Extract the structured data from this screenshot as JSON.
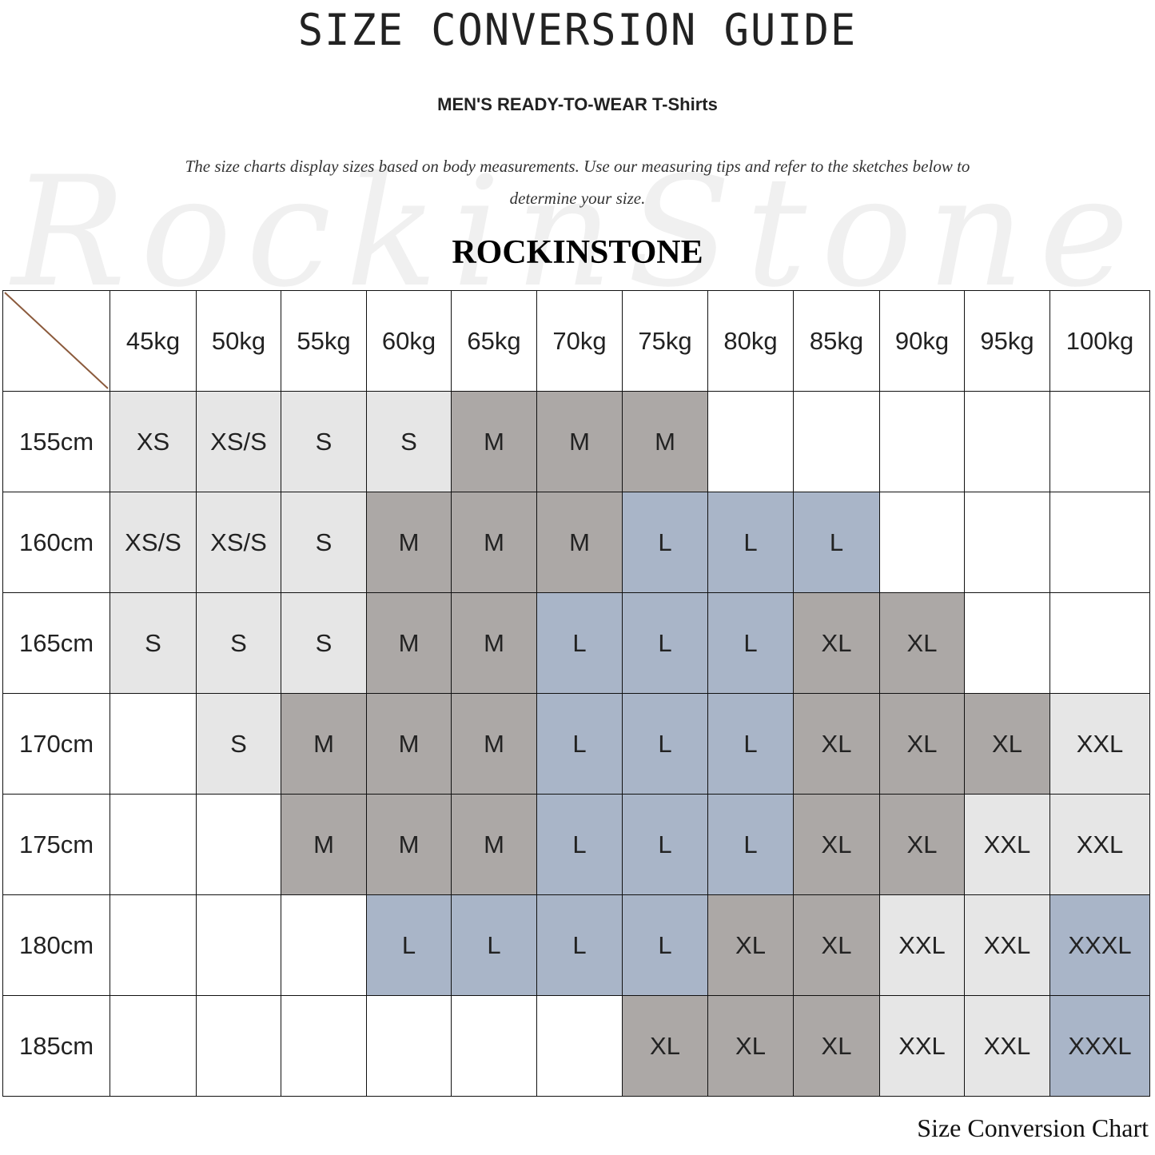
{
  "title": "SIZE CONVERSION GUIDE",
  "subtitle": "MEN'S READY-TO-WEAR T-Shirts",
  "description": "The size charts display sizes based on body measurements. Use our measuring tips and refer to the sketches below to determine your size.",
  "watermark": "RockinStone",
  "brand": "ROCKINSTONE",
  "caption": "Size Conversion Chart",
  "chart_data": {
    "type": "table",
    "columns": [
      "45kg",
      "50kg",
      "55kg",
      "60kg",
      "65kg",
      "70kg",
      "75kg",
      "80kg",
      "85kg",
      "90kg",
      "95kg",
      "100kg"
    ],
    "rows": [
      {
        "label": "155cm",
        "cells": [
          "XS",
          "XS/S",
          "S",
          "S",
          "M",
          "M",
          "M",
          "",
          "",
          "",
          "",
          ""
        ]
      },
      {
        "label": "160cm",
        "cells": [
          "XS/S",
          "XS/S",
          "S",
          "M",
          "M",
          "M",
          "L",
          "L",
          "L",
          "",
          "",
          ""
        ]
      },
      {
        "label": "165cm",
        "cells": [
          "S",
          "S",
          "S",
          "M",
          "M",
          "L",
          "L",
          "L",
          "XL",
          "XL",
          "",
          ""
        ]
      },
      {
        "label": "170cm",
        "cells": [
          "",
          "S",
          "M",
          "M",
          "M",
          "L",
          "L",
          "L",
          "XL",
          "XL",
          "XL",
          "XXL"
        ]
      },
      {
        "label": "175cm",
        "cells": [
          "",
          "",
          "M",
          "M",
          "M",
          "L",
          "L",
          "L",
          "XL",
          "XL",
          "XXL",
          "XXL"
        ]
      },
      {
        "label": "180cm",
        "cells": [
          "",
          "",
          "",
          "L",
          "L",
          "L",
          "L",
          "XL",
          "XL",
          "XXL",
          "XXL",
          "XXXL"
        ]
      },
      {
        "label": "185cm",
        "cells": [
          "",
          "",
          "",
          "",
          "",
          "",
          "XL",
          "XL",
          "XL",
          "XXL",
          "XXL",
          "XXXL"
        ]
      }
    ],
    "size_colors": {
      "XS": "#e6e6e6",
      "XS/S": "#e6e6e6",
      "S": "#e6e6e6",
      "M": "#aca8a6",
      "L": "#a9b5c8",
      "XL": "#aca8a6",
      "XXL": "#e6e6e6",
      "XXXL": "#a9b5c8",
      "": "#ffffff"
    },
    "corner_line_color": "#8b5a3c"
  }
}
